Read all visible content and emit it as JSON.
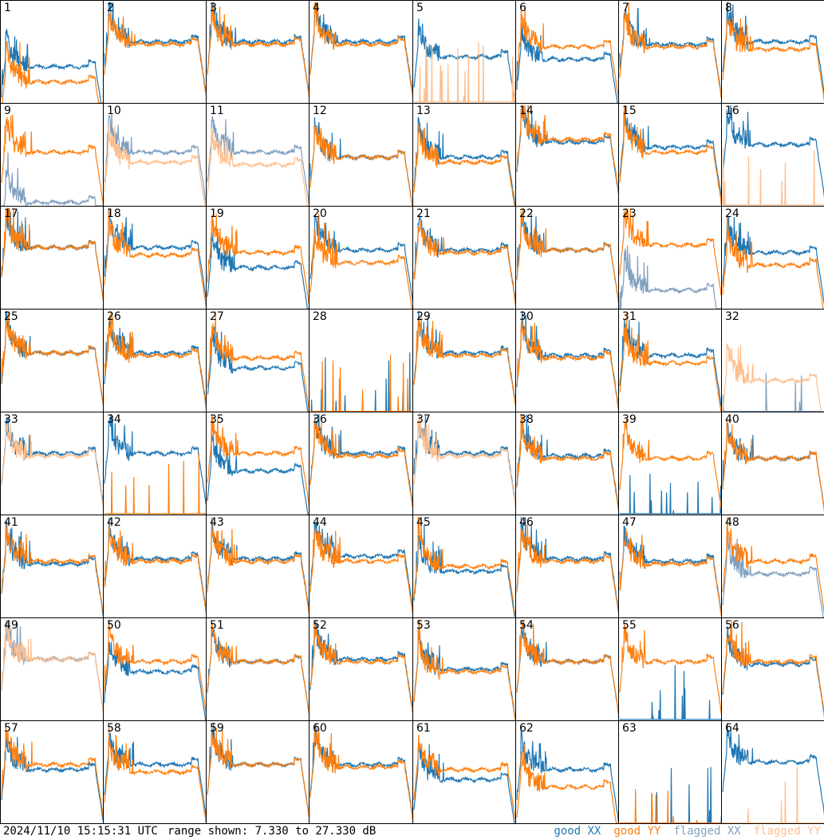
{
  "footer": {
    "timestamp": "2024/11/10 15:15:31 UTC",
    "range_text": "range shown: 7.330 to 27.330 dB"
  },
  "legend": [
    {
      "label": "good",
      "pol": "XX",
      "color": "#1f77b4"
    },
    {
      "label": "good",
      "pol": "YY",
      "color": "#ff7f0e"
    },
    {
      "label": "flagged",
      "pol": "XX",
      "color": "#7f9fbf"
    },
    {
      "label": "flagged",
      "pol": "YY",
      "color": "#ffbf8f"
    }
  ],
  "colors": {
    "good_xx": "#1f77b4",
    "good_yy": "#ff7f0e",
    "flagged_xx": "#7f9fbf",
    "flagged_yy": "#ffbf8f"
  },
  "chart_data": {
    "type": "line",
    "grid": "8x8 small multiples",
    "ylim": [
      7.33,
      27.33
    ],
    "yunit": "dB",
    "series_names": [
      "good XX",
      "good YY",
      "flagged XX",
      "flagged YY"
    ],
    "panels": [
      {
        "id": "1",
        "xx": "good",
        "yy": "good",
        "xx_level": 14.5,
        "yy_level": 11.5
      },
      {
        "id": "2",
        "xx": "good",
        "yy": "good",
        "xx_level": 19.5,
        "yy_level": 19.0
      },
      {
        "id": "3",
        "xx": "good",
        "yy": "good",
        "xx_level": 19.5,
        "yy_level": 19.0
      },
      {
        "id": "4",
        "xx": "good",
        "yy": "good",
        "xx_level": 19.5,
        "yy_level": 19.0
      },
      {
        "id": "5",
        "xx": "good",
        "yy": "flagged",
        "xx_level": 16.5,
        "yy_level": 7.5
      },
      {
        "id": "6",
        "xx": "good",
        "yy": "good",
        "xx_level": 16.0,
        "yy_level": 18.5
      },
      {
        "id": "7",
        "xx": "good",
        "yy": "good",
        "xx_level": 19.0,
        "yy_level": 18.5
      },
      {
        "id": "8",
        "xx": "good",
        "yy": "good",
        "xx_level": 19.5,
        "yy_level": 18.0
      },
      {
        "id": "9",
        "xx": "flagged",
        "yy": "good",
        "xx_level": 8.0,
        "yy_level": 18.0
      },
      {
        "id": "10",
        "xx": "flagged",
        "yy": "flagged",
        "xx_level": 18.0,
        "yy_level": 16.0
      },
      {
        "id": "11",
        "xx": "flagged",
        "yy": "flagged",
        "xx_level": 18.0,
        "yy_level": 15.5
      },
      {
        "id": "12",
        "xx": "good",
        "yy": "good",
        "xx_level": 17.0,
        "yy_level": 17.0
      },
      {
        "id": "13",
        "xx": "good",
        "yy": "good",
        "xx_level": 17.0,
        "yy_level": 16.0
      },
      {
        "id": "14",
        "xx": "good",
        "yy": "good",
        "xx_level": 20.0,
        "yy_level": 20.5
      },
      {
        "id": "15",
        "xx": "good",
        "yy": "good",
        "xx_level": 19.0,
        "yy_level": 18.0
      },
      {
        "id": "16",
        "xx": "good",
        "yy": "flagged",
        "xx_level": 19.5,
        "yy_level": 7.5
      },
      {
        "id": "17",
        "xx": "good",
        "yy": "good",
        "xx_level": 19.5,
        "yy_level": 19.5
      },
      {
        "id": "18",
        "xx": "good",
        "yy": "good",
        "xx_level": 19.5,
        "yy_level": 18.0
      },
      {
        "id": "19",
        "xx": "good",
        "yy": "good",
        "xx_level": 15.5,
        "yy_level": 18.5
      },
      {
        "id": "20",
        "xx": "good",
        "yy": "good",
        "xx_level": 19.0,
        "yy_level": 16.5
      },
      {
        "id": "21",
        "xx": "good",
        "yy": "good",
        "xx_level": 19.0,
        "yy_level": 18.5
      },
      {
        "id": "22",
        "xx": "good",
        "yy": "good",
        "xx_level": 19.0,
        "yy_level": 19.0
      },
      {
        "id": "23",
        "xx": "flagged",
        "yy": "good",
        "xx_level": 11.0,
        "yy_level": 20.0
      },
      {
        "id": "24",
        "xx": "good",
        "yy": "good",
        "xx_level": 18.5,
        "yy_level": 16.0
      },
      {
        "id": "25",
        "xx": "good",
        "yy": "good",
        "xx_level": 19.0,
        "yy_level": 19.0
      },
      {
        "id": "26",
        "xx": "good",
        "yy": "good",
        "xx_level": 19.0,
        "yy_level": 18.5
      },
      {
        "id": "27",
        "xx": "good",
        "yy": "good",
        "xx_level": 16.0,
        "yy_level": 18.0
      },
      {
        "id": "28",
        "xx": "good",
        "yy": "good",
        "xx_level": 7.4,
        "yy_level": 7.4
      },
      {
        "id": "29",
        "xx": "good",
        "yy": "good",
        "xx_level": 19.0,
        "yy_level": 18.5
      },
      {
        "id": "30",
        "xx": "good",
        "yy": "good",
        "xx_level": 18.5,
        "yy_level": 18.0
      },
      {
        "id": "31",
        "xx": "good",
        "yy": "good",
        "xx_level": 18.5,
        "yy_level": 17.0
      },
      {
        "id": "32",
        "xx": "flagged",
        "yy": "flagged",
        "xx_level": 7.4,
        "yy_level": 13.5
      },
      {
        "id": "33",
        "xx": "good",
        "yy": "flagged",
        "xx_level": 19.5,
        "yy_level": 19.0
      },
      {
        "id": "34",
        "xx": "good",
        "yy": "good",
        "xx_level": 19.5,
        "yy_level": 7.5
      },
      {
        "id": "35",
        "xx": "good",
        "yy": "good",
        "xx_level": 16.0,
        "yy_level": 19.5
      },
      {
        "id": "36",
        "xx": "good",
        "yy": "good",
        "xx_level": 19.5,
        "yy_level": 19.0
      },
      {
        "id": "37",
        "xx": "good",
        "yy": "flagged",
        "xx_level": 19.5,
        "yy_level": 19.0
      },
      {
        "id": "38",
        "xx": "good",
        "yy": "good",
        "xx_level": 19.0,
        "yy_level": 18.5
      },
      {
        "id": "39",
        "xx": "good",
        "yy": "good",
        "xx_level": 7.5,
        "yy_level": 18.5
      },
      {
        "id": "40",
        "xx": "good",
        "yy": "good",
        "xx_level": 18.5,
        "yy_level": 18.5
      },
      {
        "id": "41",
        "xx": "good",
        "yy": "good",
        "xx_level": 18.0,
        "yy_level": 18.5
      },
      {
        "id": "42",
        "xx": "good",
        "yy": "good",
        "xx_level": 19.0,
        "yy_level": 18.5
      },
      {
        "id": "43",
        "xx": "good",
        "yy": "good",
        "xx_level": 19.0,
        "yy_level": 18.5
      },
      {
        "id": "44",
        "xx": "good",
        "yy": "good",
        "xx_level": 19.5,
        "yy_level": 18.5
      },
      {
        "id": "45",
        "xx": "good",
        "yy": "good",
        "xx_level": 16.5,
        "yy_level": 17.5
      },
      {
        "id": "46",
        "xx": "good",
        "yy": "good",
        "xx_level": 19.0,
        "yy_level": 18.5
      },
      {
        "id": "47",
        "xx": "good",
        "yy": "good",
        "xx_level": 18.5,
        "yy_level": 18.0
      },
      {
        "id": "48",
        "xx": "flagged",
        "yy": "good",
        "xx_level": 16.0,
        "yy_level": 18.5
      },
      {
        "id": "49",
        "xx": "flagged",
        "yy": "flagged",
        "xx_level": 19.5,
        "yy_level": 19.5
      },
      {
        "id": "50",
        "xx": "good",
        "yy": "good",
        "xx_level": 17.0,
        "yy_level": 19.0
      },
      {
        "id": "51",
        "xx": "good",
        "yy": "good",
        "xx_level": 19.0,
        "yy_level": 19.0
      },
      {
        "id": "52",
        "xx": "good",
        "yy": "good",
        "xx_level": 19.5,
        "yy_level": 19.0
      },
      {
        "id": "53",
        "xx": "good",
        "yy": "good",
        "xx_level": 17.5,
        "yy_level": 17.0
      },
      {
        "id": "54",
        "xx": "good",
        "yy": "good",
        "xx_level": 19.0,
        "yy_level": 19.0
      },
      {
        "id": "55",
        "xx": "good",
        "yy": "good",
        "xx_level": 7.5,
        "yy_level": 19.0
      },
      {
        "id": "56",
        "xx": "good",
        "yy": "good",
        "xx_level": 18.5,
        "yy_level": 19.0
      },
      {
        "id": "57",
        "xx": "good",
        "yy": "good",
        "xx_level": 18.0,
        "yy_level": 19.0
      },
      {
        "id": "58",
        "xx": "good",
        "yy": "good",
        "xx_level": 19.0,
        "yy_level": 17.5
      },
      {
        "id": "59",
        "xx": "good",
        "yy": "good",
        "xx_level": 19.0,
        "yy_level": 19.0
      },
      {
        "id": "60",
        "xx": "good",
        "yy": "good",
        "xx_level": 19.0,
        "yy_level": 18.5
      },
      {
        "id": "61",
        "xx": "good",
        "yy": "good",
        "xx_level": 16.0,
        "yy_level": 18.0
      },
      {
        "id": "62",
        "xx": "good",
        "yy": "good",
        "xx_level": 18.0,
        "yy_level": 14.5
      },
      {
        "id": "63",
        "xx": "good",
        "yy": "good",
        "xx_level": 7.4,
        "yy_level": 7.4
      },
      {
        "id": "64",
        "xx": "good",
        "yy": "flagged",
        "xx_level": 19.5,
        "yy_level": 7.4
      }
    ]
  }
}
